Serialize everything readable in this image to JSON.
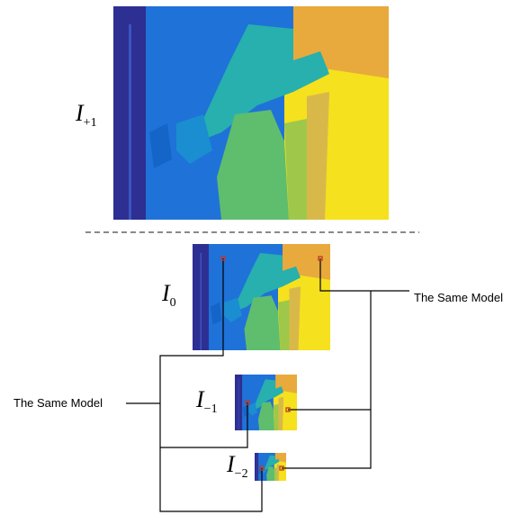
{
  "nodes": [
    {
      "symbol": "I",
      "subscript": "+1"
    },
    {
      "symbol": "I",
      "subscript": "0"
    },
    {
      "symbol": "I",
      "subscript": "−1"
    },
    {
      "symbol": "I",
      "subscript": "−2"
    }
  ],
  "annotations": [
    "The Same Model",
    "The Same Model"
  ]
}
